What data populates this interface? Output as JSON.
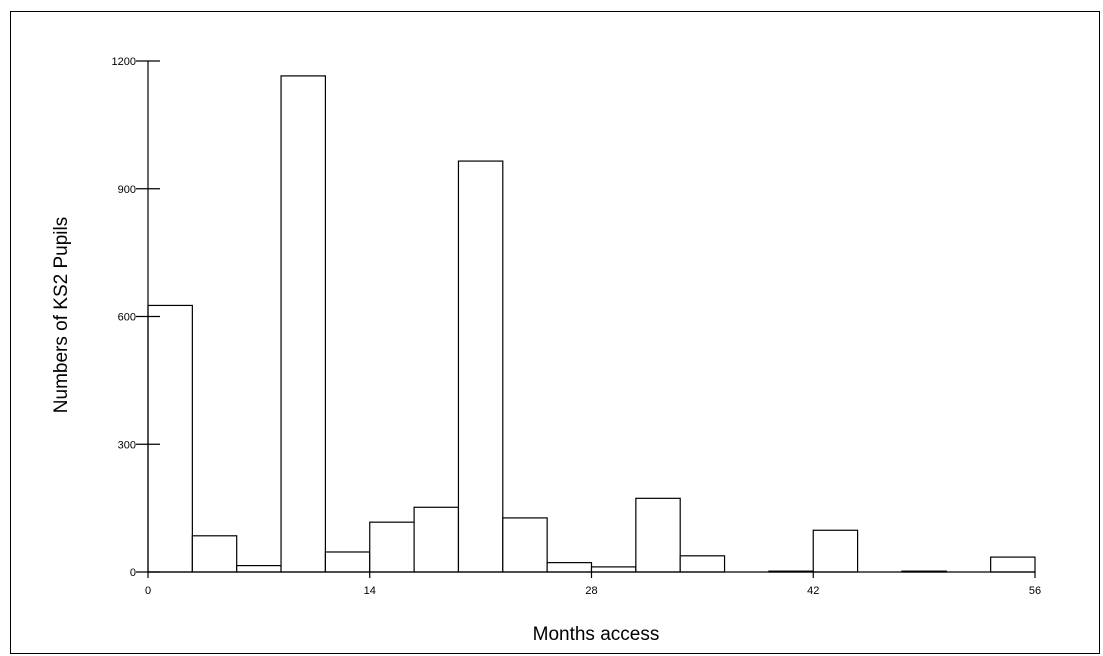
{
  "chart_data": {
    "type": "bar",
    "xlabel": "Months access",
    "ylabel": "Numbers of KS2 Pupils",
    "xlim": [
      0,
      56
    ],
    "ylim": [
      0,
      1200
    ],
    "x_ticks": [
      "0",
      "14",
      "28",
      "42",
      "56"
    ],
    "y_ticks": [
      "0",
      "300",
      "600",
      "900",
      "1200"
    ],
    "bin_width": 2.8,
    "bins": [
      {
        "x_start": 0.0,
        "value": 626
      },
      {
        "x_start": 2.8,
        "value": 85
      },
      {
        "x_start": 5.6,
        "value": 15
      },
      {
        "x_start": 8.4,
        "value": 1165
      },
      {
        "x_start": 11.2,
        "value": 47
      },
      {
        "x_start": 14.0,
        "value": 117
      },
      {
        "x_start": 16.8,
        "value": 152
      },
      {
        "x_start": 19.6,
        "value": 965
      },
      {
        "x_start": 22.4,
        "value": 127
      },
      {
        "x_start": 25.2,
        "value": 22
      },
      {
        "x_start": 28.0,
        "value": 12
      },
      {
        "x_start": 30.8,
        "value": 173
      },
      {
        "x_start": 33.6,
        "value": 38
      },
      {
        "x_start": 36.4,
        "value": 0
      },
      {
        "x_start": 39.2,
        "value": 2
      },
      {
        "x_start": 42.0,
        "value": 98
      },
      {
        "x_start": 44.8,
        "value": 0
      },
      {
        "x_start": 47.6,
        "value": 2
      },
      {
        "x_start": 50.4,
        "value": 0
      },
      {
        "x_start": 53.2,
        "value": 35
      }
    ],
    "grid": false,
    "legend": "none"
  }
}
